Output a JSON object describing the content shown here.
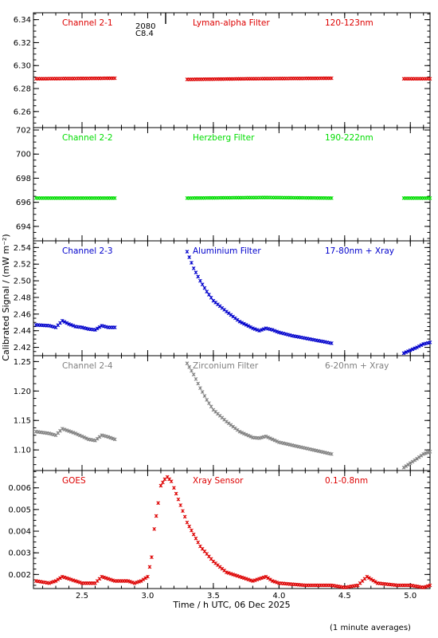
{
  "figure": {
    "ylabel": "Calibrated Signal / (mW m⁻²)",
    "xlabel": "Time / h UTC, 06 Dec 2025",
    "note": "(1 minute averages)",
    "marker_text": [
      "2080",
      "C8.4"
    ]
  },
  "chart_data": [
    {
      "type": "scatter",
      "color": "#dd0000",
      "labels": [
        "Channel 2-1",
        "Lyman-alpha Filter",
        "120-123nm"
      ],
      "xlim": [
        2.13,
        5.15
      ],
      "ylim": [
        6.246,
        6.346
      ],
      "yticks": [
        6.26,
        6.28,
        6.3,
        6.32,
        6.34
      ],
      "yticklabels": [
        "6.26",
        "6.28",
        "6.30",
        "6.32",
        "6.34"
      ],
      "series": [
        {
          "x": [
            2.15,
            2.75,
            3.3,
            3.75,
            4.4,
            4.95,
            5.15
          ],
          "y": [
            6.2885,
            6.289,
            6.288,
            6.2885,
            6.289,
            6.2885,
            6.2885
          ]
        }
      ],
      "gaps": [
        [
          2.76,
          3.29
        ],
        [
          4.41,
          4.94
        ]
      ]
    },
    {
      "type": "scatter",
      "color": "#00dd00",
      "labels": [
        "Channel 2-2",
        "Herzberg Filter",
        "190-222nm"
      ],
      "xlim": [
        2.13,
        5.15
      ],
      "ylim": [
        692.8,
        702.2
      ],
      "yticks": [
        694,
        696,
        698,
        700,
        702
      ],
      "yticklabels": [
        "694",
        "696",
        "698",
        "700",
        "702"
      ],
      "series": [
        {
          "x": [
            2.15,
            2.75,
            3.3,
            3.9,
            4.4,
            4.95,
            5.15
          ],
          "y": [
            696.35,
            696.35,
            696.35,
            696.4,
            696.35,
            696.35,
            696.35
          ]
        }
      ],
      "gaps": [
        [
          2.76,
          3.29
        ],
        [
          4.41,
          4.94
        ]
      ]
    },
    {
      "type": "scatter",
      "color": "#0000cc",
      "labels": [
        "Channel 2-3",
        "Aluminium Filter",
        "17-80nm + Xray"
      ],
      "xlim": [
        2.13,
        5.15
      ],
      "ylim": [
        2.41,
        2.548
      ],
      "yticks": [
        2.42,
        2.44,
        2.46,
        2.48,
        2.5,
        2.52,
        2.54
      ],
      "yticklabels": [
        "2.42",
        "2.44",
        "2.46",
        "2.48",
        "2.50",
        "2.52",
        "2.54"
      ],
      "series": [
        {
          "x": [
            2.15,
            2.25,
            2.3,
            2.35,
            2.4,
            2.45,
            2.5,
            2.55,
            2.6,
            2.65,
            2.7,
            2.75,
            3.3,
            3.35,
            3.4,
            3.45,
            3.5,
            3.6,
            3.7,
            3.8,
            3.85,
            3.9,
            3.95,
            4.0,
            4.1,
            4.2,
            4.3,
            4.4,
            4.95,
            5.05,
            5.1,
            5.15
          ],
          "y": [
            2.447,
            2.446,
            2.444,
            2.452,
            2.448,
            2.445,
            2.444,
            2.442,
            2.441,
            2.446,
            2.444,
            2.444,
            2.535,
            2.515,
            2.5,
            2.487,
            2.476,
            2.463,
            2.451,
            2.443,
            2.44,
            2.443,
            2.441,
            2.438,
            2.434,
            2.431,
            2.428,
            2.425,
            2.413,
            2.42,
            2.424,
            2.426
          ]
        }
      ],
      "gaps": [
        [
          2.76,
          3.29
        ],
        [
          4.41,
          4.94
        ]
      ]
    },
    {
      "type": "scatter",
      "color": "#808080",
      "labels": [
        "Channel 2-4",
        "Zirconium Filter",
        "6-20nm + Xray"
      ],
      "xlim": [
        2.13,
        5.15
      ],
      "ylim": [
        1.065,
        1.26
      ],
      "yticks": [
        1.1,
        1.15,
        1.2,
        1.25
      ],
      "yticklabels": [
        "1.10",
        "1.15",
        "1.20",
        "1.25"
      ],
      "series": [
        {
          "x": [
            2.15,
            2.25,
            2.3,
            2.35,
            2.4,
            2.45,
            2.5,
            2.55,
            2.6,
            2.65,
            2.7,
            2.75,
            3.3,
            3.35,
            3.4,
            3.45,
            3.5,
            3.6,
            3.7,
            3.8,
            3.85,
            3.9,
            3.95,
            4.0,
            4.1,
            4.2,
            4.3,
            4.4,
            4.95,
            5.05,
            5.1,
            5.15
          ],
          "y": [
            1.131,
            1.128,
            1.125,
            1.136,
            1.132,
            1.128,
            1.123,
            1.118,
            1.116,
            1.125,
            1.122,
            1.118,
            1.247,
            1.228,
            1.205,
            1.185,
            1.168,
            1.148,
            1.131,
            1.121,
            1.12,
            1.123,
            1.118,
            1.113,
            1.108,
            1.103,
            1.098,
            1.093,
            1.07,
            1.085,
            1.093,
            1.097
          ]
        }
      ],
      "gaps": [
        [
          2.76,
          3.29
        ],
        [
          4.41,
          4.94
        ]
      ]
    },
    {
      "type": "scatter",
      "color": "#dd0000",
      "labels": [
        "GOES",
        "Xray Sensor",
        "0.1-0.8nm"
      ],
      "xlim": [
        2.13,
        5.15
      ],
      "ylim": [
        0.00135,
        0.0068
      ],
      "yticks": [
        0.002,
        0.003,
        0.004,
        0.005,
        0.006
      ],
      "yticklabels": [
        "0.002",
        "0.003",
        "0.004",
        "0.005",
        "0.006"
      ],
      "series": [
        {
          "x": [
            2.15,
            2.25,
            2.3,
            2.35,
            2.4,
            2.45,
            2.5,
            2.55,
            2.6,
            2.65,
            2.7,
            2.75,
            2.85,
            2.9,
            2.95,
            3.0,
            3.03,
            3.05,
            3.08,
            3.1,
            3.13,
            3.15,
            3.18,
            3.2,
            3.25,
            3.3,
            3.4,
            3.5,
            3.6,
            3.7,
            3.8,
            3.85,
            3.9,
            3.95,
            4.0,
            4.2,
            4.4,
            4.5,
            4.6,
            4.67,
            4.75,
            4.9,
            5.0,
            5.1,
            5.15
          ],
          "y": [
            0.0017,
            0.0016,
            0.0017,
            0.0019,
            0.0018,
            0.0017,
            0.0016,
            0.0016,
            0.0016,
            0.0019,
            0.0018,
            0.0017,
            0.0017,
            0.0016,
            0.0017,
            0.0019,
            0.0028,
            0.0041,
            0.0053,
            0.0061,
            0.0064,
            0.0065,
            0.0063,
            0.006,
            0.0052,
            0.0044,
            0.0033,
            0.0026,
            0.0021,
            0.0019,
            0.0017,
            0.0018,
            0.0019,
            0.0017,
            0.0016,
            0.0015,
            0.0015,
            0.0014,
            0.0015,
            0.0019,
            0.0016,
            0.0015,
            0.0015,
            0.0014,
            0.0015
          ]
        }
      ],
      "gaps": []
    }
  ],
  "xaxis": {
    "ticks": [
      2.5,
      3.0,
      3.5,
      4.0,
      4.5,
      5.0
    ],
    "ticklabels": [
      "2.5",
      "3.0",
      "3.5",
      "4.0",
      "4.5",
      "5.0"
    ],
    "minor_step": 0.1
  }
}
